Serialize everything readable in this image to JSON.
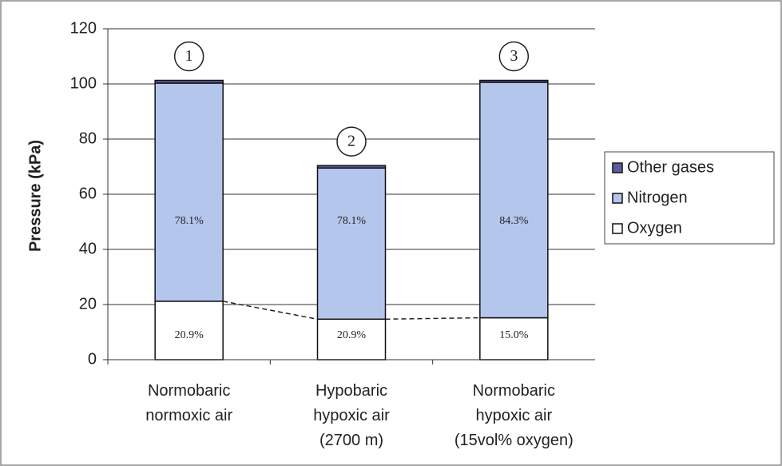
{
  "chart_data": {
    "type": "stacked_bar",
    "y_label": "Pressure (kPa)",
    "categories": [
      [
        "Normobaric",
        "normoxic air"
      ],
      [
        "Hypobaric",
        "hypoxic air",
        "(2700 m)"
      ],
      [
        "Normobaric",
        "hypoxic air",
        "(15vol% oxygen)"
      ]
    ],
    "annotations": [
      "1",
      "2",
      "3"
    ],
    "series": [
      {
        "name": "Oxygen",
        "color": "#ffffff",
        "values": [
          21.2,
          14.7,
          15.2
        ],
        "percent_labels": [
          "20.9%",
          "20.9%",
          "15.0%"
        ]
      },
      {
        "name": "Nitrogen",
        "color": "#b4c6ec",
        "values": [
          79.1,
          54.8,
          85.4
        ],
        "percent_labels": [
          "78.1%",
          "78.1%",
          "84.3%"
        ]
      },
      {
        "name": "Other gases",
        "color": "#5c5c9e",
        "values": [
          1.0,
          0.9,
          0.7
        ]
      }
    ],
    "ylim": [
      0,
      120
    ],
    "yticks": [
      0,
      20,
      40,
      60,
      80,
      100,
      120
    ],
    "grid": true,
    "legend": "right"
  }
}
